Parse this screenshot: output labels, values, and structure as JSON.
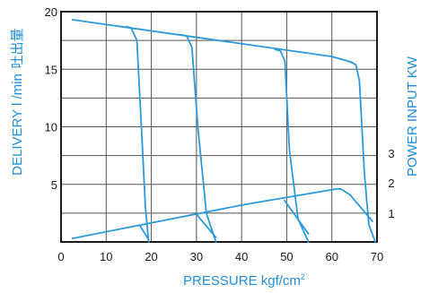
{
  "chart_data": {
    "type": "line",
    "xlabel": "PRESSURE kgf/cm",
    "xlabel_superscript": "2",
    "ylabel_left": "DELIVERY l /min",
    "ylabel_left_cjk": "吐出量",
    "ylabel_right": "POWER INPUT KW",
    "xlim": [
      0,
      70
    ],
    "ylim_left": [
      0,
      20
    ],
    "x_ticks": [
      "0",
      "10",
      "20",
      "30",
      "40",
      "50",
      "60",
      "70"
    ],
    "y_ticks_left": [
      "5",
      "10",
      "15",
      "20"
    ],
    "y_ticks_right": [
      "1",
      "2",
      "3"
    ],
    "grid": true,
    "line_color": "#2a9ad8",
    "series": [
      {
        "role": "delivery_envelope",
        "points": [
          [
            2.5,
            19.3
          ],
          [
            60,
            16.1
          ],
          [
            64.5,
            15.6
          ]
        ]
      },
      {
        "role": "delivery",
        "points": [
          [
            14.5,
            18.7
          ],
          [
            15.5,
            18.6
          ],
          [
            16.8,
            17.5
          ],
          [
            17.8,
            10
          ],
          [
            18.7,
            3.0
          ],
          [
            19.4,
            0
          ]
        ]
      },
      {
        "role": "delivery",
        "points": [
          [
            26.5,
            18.0
          ],
          [
            27.8,
            17.9
          ],
          [
            29.0,
            16.9
          ],
          [
            30.3,
            10
          ],
          [
            32.2,
            2.5
          ],
          [
            34.3,
            0
          ]
        ]
      },
      {
        "role": "delivery",
        "points": [
          [
            47.5,
            16.7
          ],
          [
            48.6,
            16.6
          ],
          [
            49.6,
            15.7
          ],
          [
            50.6,
            8
          ],
          [
            52.5,
            2.0
          ],
          [
            54.8,
            0
          ]
        ]
      },
      {
        "role": "delivery",
        "points": [
          [
            64.0,
            15.65
          ],
          [
            65.3,
            15.4
          ],
          [
            66.1,
            14.0
          ],
          [
            67.2,
            6
          ],
          [
            68.2,
            1.5
          ],
          [
            69.6,
            0
          ]
        ]
      },
      {
        "role": "power_envelope",
        "points": [
          [
            2.5,
            0.3
          ],
          [
            40,
            3.2
          ],
          [
            61,
            4.6
          ],
          [
            62,
            4.6
          ],
          [
            64,
            4.1
          ],
          [
            69,
            1.8
          ]
        ]
      },
      {
        "role": "power_drop",
        "points": [
          [
            17.5,
            1.4
          ],
          [
            19.4,
            0.2
          ]
        ]
      },
      {
        "role": "power_drop",
        "points": [
          [
            30.2,
            2.3
          ],
          [
            34.3,
            0.4
          ]
        ]
      },
      {
        "role": "power_drop",
        "points": [
          [
            49.5,
            3.6
          ],
          [
            54.8,
            0.7
          ]
        ]
      }
    ]
  }
}
